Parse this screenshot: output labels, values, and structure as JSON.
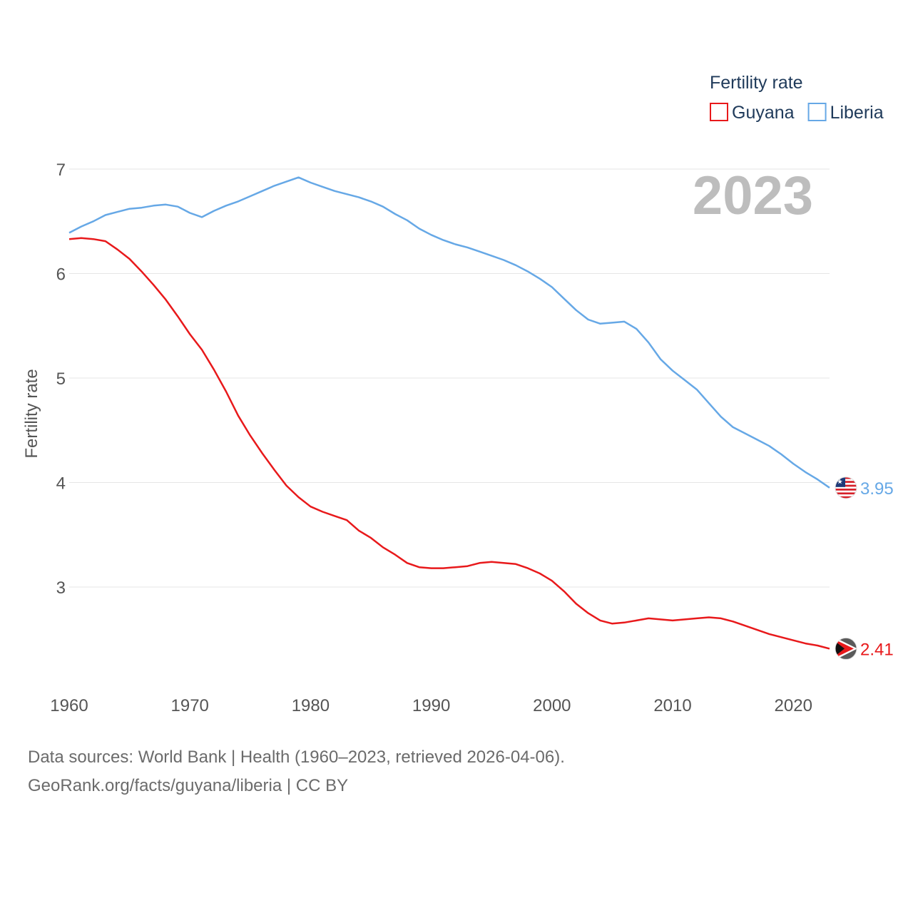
{
  "chart_data": {
    "type": "line",
    "title": "",
    "xlabel": "",
    "ylabel": "Fertility rate",
    "xlim": [
      1960,
      2023
    ],
    "ylim": [
      2.2,
      7.2
    ],
    "x_ticks": [
      1960,
      1970,
      1980,
      1990,
      2000,
      2010,
      2020
    ],
    "y_ticks": [
      3,
      4,
      5,
      6,
      7
    ],
    "grid": true,
    "legend": {
      "title": "Fertility rate",
      "position": "top-right"
    },
    "year_label": "2023",
    "x": [
      1960,
      1961,
      1962,
      1963,
      1964,
      1965,
      1966,
      1967,
      1968,
      1969,
      1970,
      1971,
      1972,
      1973,
      1974,
      1975,
      1976,
      1977,
      1978,
      1979,
      1980,
      1981,
      1982,
      1983,
      1984,
      1985,
      1986,
      1987,
      1988,
      1989,
      1990,
      1991,
      1992,
      1993,
      1994,
      1995,
      1996,
      1997,
      1998,
      1999,
      2000,
      2001,
      2002,
      2003,
      2004,
      2005,
      2006,
      2007,
      2008,
      2009,
      2010,
      2011,
      2012,
      2013,
      2014,
      2015,
      2016,
      2017,
      2018,
      2019,
      2020,
      2021,
      2022,
      2023
    ],
    "series": [
      {
        "name": "Guyana",
        "color": "#e8191b",
        "end_label": "2.41",
        "values": [
          6.33,
          6.34,
          6.33,
          6.31,
          6.23,
          6.14,
          6.02,
          5.89,
          5.75,
          5.59,
          5.42,
          5.27,
          5.08,
          4.87,
          4.64,
          4.45,
          4.28,
          4.12,
          3.97,
          3.86,
          3.77,
          3.72,
          3.68,
          3.64,
          3.54,
          3.47,
          3.38,
          3.31,
          3.23,
          3.19,
          3.18,
          3.18,
          3.19,
          3.2,
          3.23,
          3.24,
          3.23,
          3.22,
          3.18,
          3.13,
          3.06,
          2.96,
          2.84,
          2.75,
          2.68,
          2.65,
          2.66,
          2.68,
          2.7,
          2.69,
          2.68,
          2.69,
          2.7,
          2.71,
          2.7,
          2.67,
          2.63,
          2.59,
          2.55,
          2.52,
          2.49,
          2.46,
          2.44,
          2.41
        ]
      },
      {
        "name": "Liberia",
        "color": "#66a8e6",
        "end_label": "3.95",
        "values": [
          6.39,
          6.45,
          6.5,
          6.56,
          6.59,
          6.62,
          6.63,
          6.65,
          6.66,
          6.64,
          6.58,
          6.54,
          6.6,
          6.65,
          6.69,
          6.74,
          6.79,
          6.84,
          6.88,
          6.92,
          6.87,
          6.83,
          6.79,
          6.76,
          6.73,
          6.69,
          6.64,
          6.57,
          6.51,
          6.43,
          6.37,
          6.32,
          6.28,
          6.25,
          6.21,
          6.17,
          6.13,
          6.08,
          6.02,
          5.95,
          5.87,
          5.76,
          5.65,
          5.56,
          5.52,
          5.53,
          5.54,
          5.47,
          5.34,
          5.18,
          5.07,
          4.98,
          4.89,
          4.76,
          4.63,
          4.53,
          4.47,
          4.41,
          4.35,
          4.27,
          4.18,
          4.1,
          4.03,
          3.95
        ]
      }
    ]
  },
  "footer": {
    "line1": "Data sources: World Bank | Health (1960–2023, retrieved 2026-04-06).",
    "line2": "GeoRank.org/facts/guyana/liberia | CC BY"
  }
}
